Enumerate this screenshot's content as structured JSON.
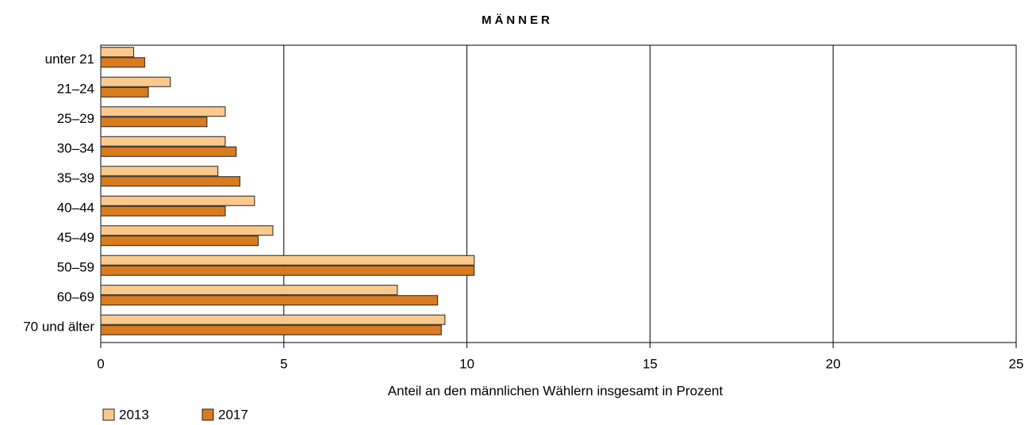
{
  "chart_data": {
    "type": "bar",
    "orientation": "horizontal",
    "title": "MÄNNER",
    "x_label": "Anteil an den männlichen Wählern insgesamt in Prozent",
    "categories": [
      "unter 21",
      "21–24",
      "25–29",
      "30–34",
      "35–39",
      "40–44",
      "45–49",
      "50–59",
      "60–69",
      "70 und älter"
    ],
    "series": [
      {
        "name": "2013",
        "color": "#fcc98d",
        "values": [
          0.9,
          1.9,
          3.4,
          3.4,
          3.2,
          4.2,
          4.7,
          10.2,
          8.1,
          9.4
        ]
      },
      {
        "name": "2017",
        "color": "#d97b1f",
        "values": [
          1.2,
          1.3,
          2.9,
          3.7,
          3.8,
          3.4,
          4.3,
          10.2,
          9.2,
          9.3
        ]
      }
    ],
    "xlim": [
      0,
      25
    ],
    "xticks": [
      0,
      5,
      10,
      15,
      20,
      25
    ],
    "grid": true,
    "legend": "bottom-left"
  }
}
